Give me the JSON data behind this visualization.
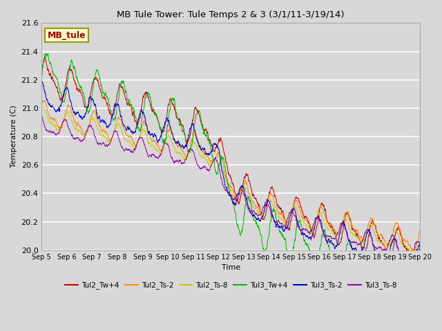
{
  "title": "MB Tule Tower: Tule Temps 2 & 3 (3/1/11-3/19/14)",
  "xlabel": "Time",
  "ylabel": "Temperature (C)",
  "ylim": [
    20.0,
    21.6
  ],
  "xlim": [
    0,
    15
  ],
  "yticks": [
    20.0,
    20.2,
    20.4,
    20.6,
    20.8,
    21.0,
    21.2,
    21.4,
    21.6
  ],
  "xtick_labels": [
    "Sep 5",
    "Sep 6",
    "Sep 7",
    "Sep 8",
    "Sep 9",
    "Sep 10",
    "Sep 11",
    "Sep 12",
    "Sep 13",
    "Sep 14",
    "Sep 15",
    "Sep 16",
    "Sep 17",
    "Sep 18",
    "Sep 19",
    "Sep 20"
  ],
  "background_color": "#d8d8d8",
  "plot_bg_color": "#d8d8d8",
  "grid_color": "#ffffff",
  "legend_entries": [
    "Tul2_Tw+4",
    "Tul2_Ts-2",
    "Tul2_Ts-8",
    "Tul3_Tw+4",
    "Tul3_Ts-2",
    "Tul3_Ts-8"
  ],
  "line_colors": [
    "#cc0000",
    "#ff8c00",
    "#cccc00",
    "#00bb00",
    "#0000cc",
    "#9900aa"
  ],
  "inset_label": "MB_tule",
  "inset_label_color": "#aa0000",
  "inset_bg": "#ffffcc",
  "inset_border": "#999900",
  "n_points": 2000,
  "x_start": 0,
  "x_end": 15,
  "figwidth": 6.4,
  "figheight": 4.8,
  "dpi": 100
}
